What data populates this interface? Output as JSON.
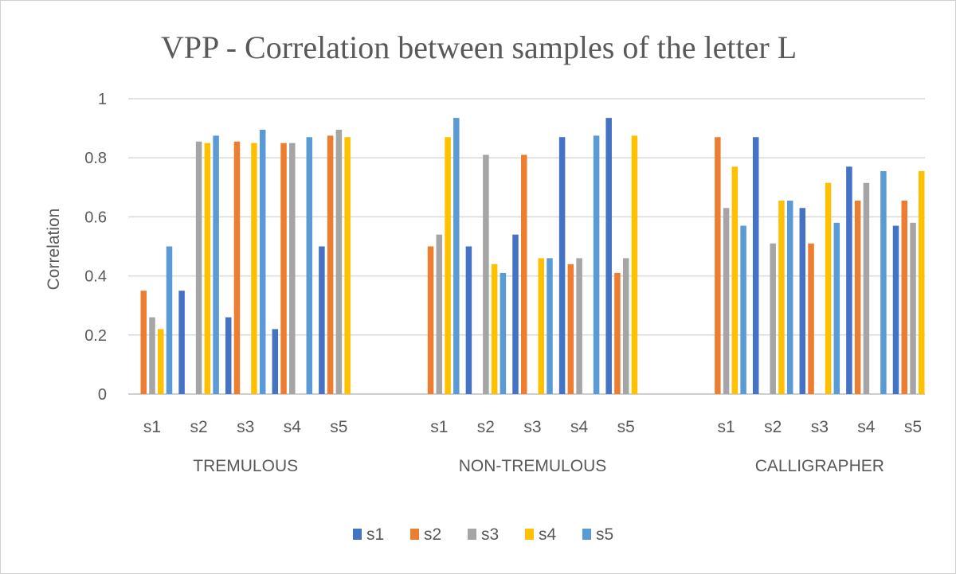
{
  "chart_data": {
    "type": "bar",
    "title": "VPP - Correlation between samples of the letter L",
    "xlabel": "",
    "ylabel": "Correlation",
    "ylim": [
      0,
      1
    ],
    "yticks": [
      "0",
      "0.2",
      "0.4",
      "0.6",
      "0.8",
      "1"
    ],
    "grid": true,
    "legend_position": "bottom",
    "groups": [
      {
        "name": "TREMULOUS",
        "categories": [
          "s1",
          "s2",
          "s3",
          "s4",
          "s5"
        ],
        "series": [
          {
            "name": "s1",
            "values": [
              0,
              0.35,
              0.26,
              0.22,
              0.5
            ]
          },
          {
            "name": "s2",
            "values": [
              0.35,
              0,
              0.855,
              0.85,
              0.875
            ]
          },
          {
            "name": "s3",
            "values": [
              0.26,
              0.855,
              0,
              0.85,
              0.895
            ]
          },
          {
            "name": "s4",
            "values": [
              0.22,
              0.85,
              0.85,
              0,
              0.87
            ]
          },
          {
            "name": "s5",
            "values": [
              0.5,
              0.875,
              0.895,
              0.87,
              0
            ]
          }
        ]
      },
      {
        "name": "NON-TREMULOUS",
        "categories": [
          "s1",
          "s2",
          "s3",
          "s4",
          "s5"
        ],
        "series": [
          {
            "name": "s1",
            "values": [
              0,
              0.5,
              0.54,
              0.87,
              0.935
            ]
          },
          {
            "name": "s2",
            "values": [
              0.5,
              0,
              0.81,
              0.44,
              0.41
            ]
          },
          {
            "name": "s3",
            "values": [
              0.54,
              0.81,
              0,
              0.46,
              0.46
            ]
          },
          {
            "name": "s4",
            "values": [
              0.87,
              0.44,
              0.46,
              0,
              0.875
            ]
          },
          {
            "name": "s5",
            "values": [
              0.935,
              0.41,
              0.46,
              0.875,
              0
            ]
          }
        ]
      },
      {
        "name": "CALLIGRAPHER",
        "categories": [
          "s1",
          "s2",
          "s3",
          "s4",
          "s5"
        ],
        "series": [
          {
            "name": "s1",
            "values": [
              0,
              0.87,
              0.63,
              0.77,
              0.57
            ]
          },
          {
            "name": "s2",
            "values": [
              0.87,
              0,
              0.51,
              0.655,
              0.655
            ]
          },
          {
            "name": "s3",
            "values": [
              0.63,
              0.51,
              0,
              0.715,
              0.58
            ]
          },
          {
            "name": "s4",
            "values": [
              0.77,
              0.655,
              0.715,
              0,
              0.755
            ]
          },
          {
            "name": "s5",
            "values": [
              0.57,
              0.655,
              0.58,
              0.755,
              0
            ]
          }
        ]
      }
    ],
    "legend": [
      "s1",
      "s2",
      "s3",
      "s4",
      "s5"
    ],
    "colors": [
      "#4472C4",
      "#ED7D31",
      "#A5A5A5",
      "#FFC000",
      "#5B9BD5"
    ]
  }
}
